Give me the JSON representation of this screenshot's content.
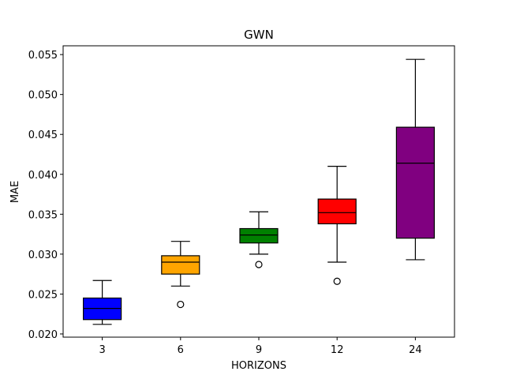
{
  "chart_data": {
    "type": "box",
    "title": "GWN",
    "xlabel": "HORIZONS",
    "ylabel": "MAE",
    "ylim": [
      0.0196,
      0.0561
    ],
    "yticks": [
      0.02,
      0.025,
      0.03,
      0.035,
      0.04,
      0.045,
      0.05,
      0.055
    ],
    "ytick_labels": [
      "0.020",
      "0.025",
      "0.030",
      "0.035",
      "0.040",
      "0.045",
      "0.050",
      "0.055"
    ],
    "grid": false,
    "categories": [
      "3",
      "6",
      "9",
      "12",
      "24"
    ],
    "boxes": [
      {
        "category": "3",
        "whisker_low": 0.0212,
        "q1": 0.0218,
        "median": 0.0232,
        "q3": 0.0245,
        "whisker_high": 0.0267,
        "outliers": [],
        "color": "#0000ff"
      },
      {
        "category": "6",
        "whisker_low": 0.026,
        "q1": 0.0275,
        "median": 0.029,
        "q3": 0.0298,
        "whisker_high": 0.0316,
        "outliers": [
          0.0237
        ],
        "color": "#ffa500"
      },
      {
        "category": "9",
        "whisker_low": 0.03,
        "q1": 0.0314,
        "median": 0.0324,
        "q3": 0.0332,
        "whisker_high": 0.0353,
        "outliers": [
          0.0287
        ],
        "color": "#008000"
      },
      {
        "category": "12",
        "whisker_low": 0.029,
        "q1": 0.0338,
        "median": 0.0352,
        "q3": 0.0369,
        "whisker_high": 0.041,
        "outliers": [
          0.0266
        ],
        "color": "#ff0000"
      },
      {
        "category": "24",
        "whisker_low": 0.0293,
        "q1": 0.032,
        "median": 0.0414,
        "q3": 0.0459,
        "whisker_high": 0.0544,
        "outliers": [],
        "color": "#800080"
      }
    ]
  }
}
